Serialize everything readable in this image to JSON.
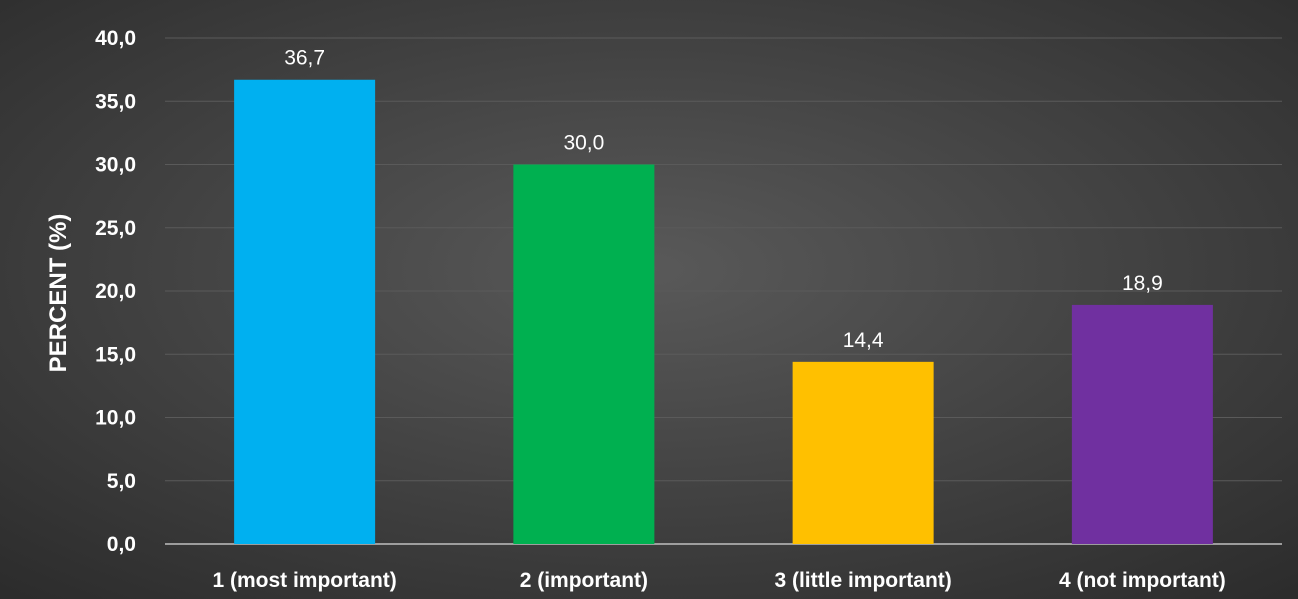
{
  "chart_data": {
    "type": "bar",
    "categories": [
      "1 (most important)",
      "2 (important)",
      "3 (little important)",
      "4 (not important)"
    ],
    "values": [
      36.7,
      30.0,
      14.4,
      18.9
    ],
    "value_labels": [
      "36,7",
      "30,0",
      "14,4",
      "18,9"
    ],
    "colors": [
      "#00b0f0",
      "#00b050",
      "#ffc000",
      "#7030a0"
    ],
    "title": "",
    "xlabel": "",
    "ylabel": "PERCENT (%)",
    "ylim": [
      0,
      40
    ],
    "yticks": [
      0,
      5,
      10,
      15,
      20,
      25,
      30,
      35,
      40
    ],
    "ytick_labels": [
      "0,0",
      "5,0",
      "10,0",
      "15,0",
      "20,0",
      "25,0",
      "30,0",
      "35,0",
      "40,0"
    ],
    "grid": true,
    "legend": "none",
    "background": "#404040"
  }
}
